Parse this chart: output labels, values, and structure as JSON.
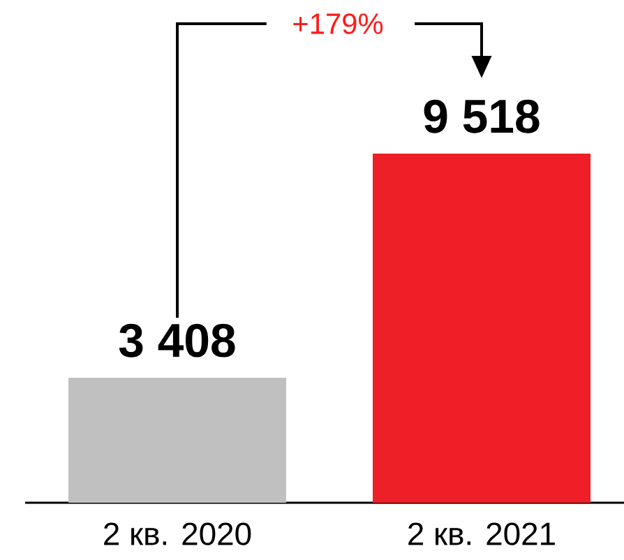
{
  "chart_data": {
    "type": "bar",
    "categories": [
      "2 кв. 2020",
      "2 кв. 2021"
    ],
    "values": [
      3408,
      9518
    ],
    "colors": [
      "#c0c0c0",
      "#ee1f26"
    ],
    "value_labels": [
      "3 408",
      "9 518"
    ],
    "annotations": [
      "+179%"
    ]
  }
}
